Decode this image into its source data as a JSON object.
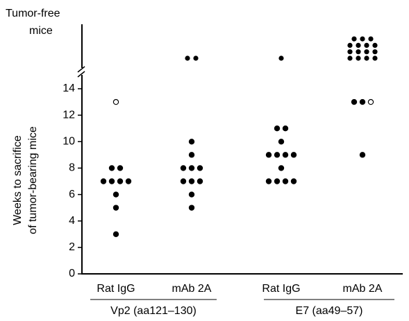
{
  "chart_data": {
    "type": "dot",
    "tumor_free_label": [
      "Tumor-free",
      "mice"
    ],
    "y_label": [
      "Weeks to sacrifice",
      "of  tumor-bearing mice"
    ],
    "ylim": [
      0,
      14
    ],
    "yticks": [
      0,
      2,
      4,
      6,
      8,
      10,
      12,
      14
    ],
    "color": "#000000",
    "conditions": [
      {
        "name": "Vp2 (aa121–130)",
        "groups": [
          {
            "name": "Rat IgG",
            "values": [
              3,
              5,
              6,
              7,
              7,
              7,
              7,
              8,
              8
            ],
            "open_values": [
              13
            ],
            "tumor_free": 0
          },
          {
            "name": "mAb 2A",
            "values": [
              5,
              6,
              7,
              7,
              7,
              8,
              8,
              8,
              9,
              10
            ],
            "open_values": [],
            "tumor_free": 2
          }
        ]
      },
      {
        "name": "E7 (aa49–57)",
        "groups": [
          {
            "name": "Rat IgG",
            "values": [
              7,
              7,
              7,
              7,
              8,
              9,
              9,
              9,
              9,
              10,
              11,
              11
            ],
            "open_values": [],
            "tumor_free": 1
          },
          {
            "name": "mAb 2A",
            "values": [
              9,
              13,
              13
            ],
            "open_values": [
              13
            ],
            "tumor_free": 15
          }
        ]
      }
    ]
  }
}
